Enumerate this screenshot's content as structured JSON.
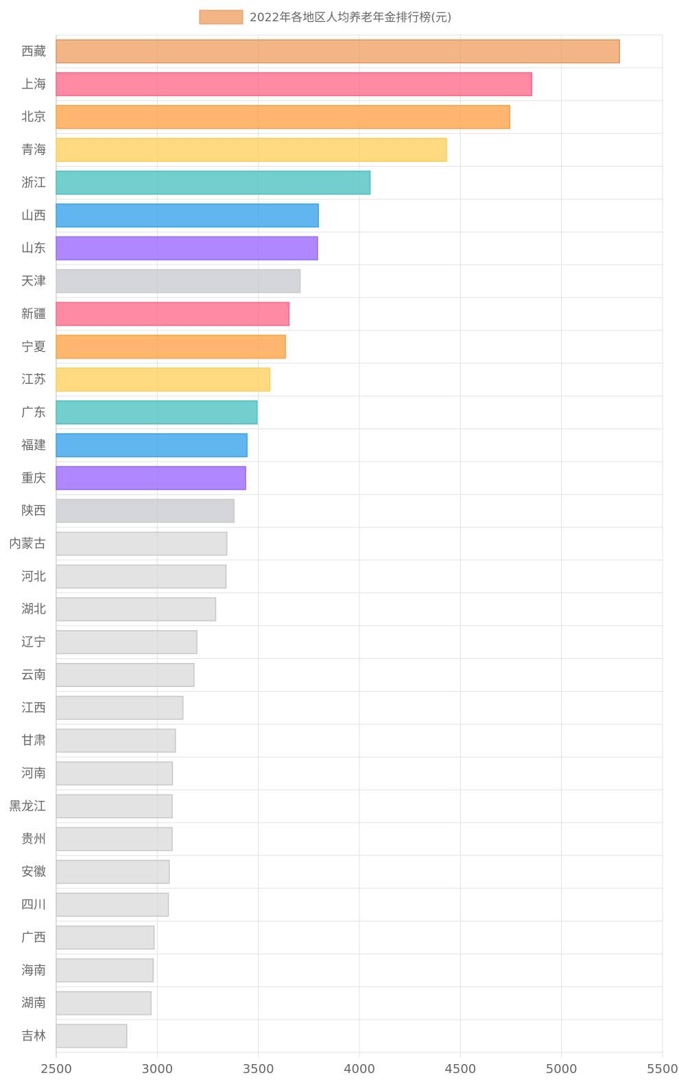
{
  "chart_data": {
    "type": "bar",
    "orientation": "horizontal",
    "title": "",
    "xlabel": "",
    "ylabel": "",
    "legend": {
      "position": "top-center",
      "label": "2022年各地区人均养老年金排行榜(元)",
      "color": "#f5b17e"
    },
    "grid": true,
    "xlim": [
      2500,
      5500
    ],
    "x_ticks": [
      2500,
      3000,
      3500,
      4000,
      4500,
      5000,
      5500
    ],
    "categories": [
      "西藏",
      "上海",
      "北京",
      "青海",
      "浙江",
      "山西",
      "山东",
      "天津",
      "新疆",
      "宁夏",
      "江苏",
      "广东",
      "福建",
      "重庆",
      "陕西",
      "内蒙古",
      "河北",
      "湖北",
      "辽宁",
      "云南",
      "江西",
      "甘肃",
      "河南",
      "黑龙江",
      "贵州",
      "安徽",
      "四川",
      "广西",
      "海南",
      "湖南",
      "吉林"
    ],
    "series": [
      {
        "name": "2022年各地区人均养老年金排行榜(元)",
        "values": [
          5287,
          4853,
          4744,
          4431,
          4053,
          3797,
          3793,
          3707,
          3652,
          3634,
          3557,
          3494,
          3444,
          3437,
          3380,
          3344,
          3340,
          3289,
          3196,
          3182,
          3127,
          3090,
          3075,
          3074,
          3074,
          3059,
          3055,
          2984,
          2980,
          2969,
          2849
        ]
      }
    ],
    "colors": {
      "fills": [
        "rgba(240,153,87,0.72)",
        "rgba(255,99,132,0.75)",
        "rgba(255,159,64,0.75)",
        "rgba(255,205,86,0.75)",
        "rgba(75,192,192,0.78)",
        "rgba(54,162,235,0.78)",
        "rgba(153,102,255,0.78)",
        "rgba(201,203,207,0.8)",
        "rgba(255,99,132,0.75)",
        "rgba(255,159,64,0.75)",
        "rgba(255,205,86,0.75)",
        "rgba(75,192,192,0.78)",
        "rgba(54,162,235,0.78)",
        "rgba(153,102,255,0.78)",
        "rgba(201,203,207,0.8)"
      ],
      "borders": [
        "#e0945a",
        "#ff6384",
        "#ff9f40",
        "#ffcd56",
        "#4bc0c0",
        "#36a2eb",
        "#9966ff",
        "#c9cbcf",
        "#ff6384",
        "#ff9f40",
        "#ffcd56",
        "#4bc0c0",
        "#36a2eb",
        "#9966ff",
        "#c9cbcf"
      ],
      "default_fill": "rgba(220,220,220,0.8)",
      "default_border": "#c8c8c8",
      "grid": "#e2e2e2",
      "label": "#666666"
    }
  }
}
